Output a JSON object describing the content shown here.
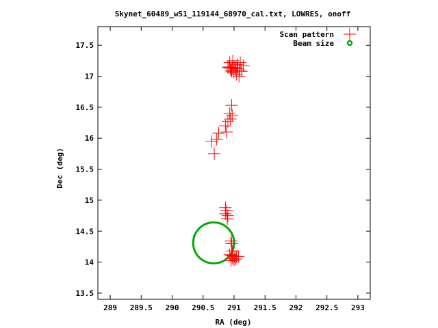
{
  "chart_data": {
    "type": "scatter",
    "title": "Skynet_60489_w51_119144_68970_cal.txt, LOWRES, onoff",
    "xlabel": "RA (deg)",
    "ylabel": "Dec (deg)",
    "xlim": [
      288.8,
      293.2
    ],
    "ylim": [
      13.4,
      17.8
    ],
    "x_ticks": [
      289,
      289.5,
      290,
      290.5,
      291,
      291.5,
      292,
      292.5,
      293
    ],
    "x_tick_labels": [
      "289",
      "289.5",
      "290",
      "290.5",
      "291",
      "291.5",
      "292",
      "292.5",
      "293"
    ],
    "y_ticks": [
      13.5,
      14,
      14.5,
      15,
      15.5,
      16,
      16.5,
      17,
      17.5
    ],
    "y_tick_labels": [
      "13.5",
      "14",
      "14.5",
      "15",
      "15.5",
      "16",
      "16.5",
      "17",
      "17.5"
    ],
    "grid": false,
    "legend_position": "top-right",
    "colors": {
      "scan": "#ff0000",
      "beam": "#00aa00"
    },
    "series": [
      {
        "name": "Scan pattern",
        "marker": "plus",
        "points": [
          [
            290.93,
            17.22
          ],
          [
            290.98,
            17.25
          ],
          [
            291.05,
            17.19
          ],
          [
            291.1,
            17.22
          ],
          [
            291.15,
            17.17
          ],
          [
            290.9,
            17.14
          ],
          [
            290.94,
            17.13
          ],
          [
            290.97,
            17.14
          ],
          [
            291.0,
            17.14
          ],
          [
            291.03,
            17.14
          ],
          [
            291.06,
            17.12
          ],
          [
            291.09,
            17.1
          ],
          [
            291.12,
            17.08
          ],
          [
            290.96,
            17.08
          ],
          [
            290.99,
            17.06
          ],
          [
            291.04,
            17.03
          ],
          [
            291.08,
            17.0
          ],
          [
            290.95,
            17.1
          ],
          [
            291.02,
            17.1
          ],
          [
            290.92,
            17.15
          ],
          [
            290.96,
            16.53
          ],
          [
            290.93,
            16.4
          ],
          [
            290.97,
            16.37
          ],
          [
            290.94,
            16.31
          ],
          [
            290.9,
            16.27
          ],
          [
            290.86,
            16.2
          ],
          [
            290.88,
            16.1
          ],
          [
            290.75,
            16.08
          ],
          [
            290.72,
            15.98
          ],
          [
            290.64,
            15.95
          ],
          [
            290.68,
            15.75
          ],
          [
            290.86,
            14.88
          ],
          [
            290.88,
            14.83
          ],
          [
            290.86,
            14.78
          ],
          [
            290.9,
            14.75
          ],
          [
            290.89,
            14.7
          ],
          [
            290.95,
            14.34
          ],
          [
            290.96,
            14.3
          ],
          [
            290.97,
            14.18
          ],
          [
            290.93,
            14.12
          ],
          [
            290.96,
            14.11
          ],
          [
            290.98,
            14.1
          ],
          [
            291.01,
            14.09
          ],
          [
            291.04,
            14.09
          ],
          [
            291.07,
            14.09
          ],
          [
            290.97,
            14.06
          ],
          [
            291.0,
            14.03
          ],
          [
            290.95,
            14.02
          ],
          [
            291.03,
            14.05
          ]
        ]
      },
      {
        "name": "Beam size",
        "marker": "circle",
        "center": [
          290.67,
          14.31
        ],
        "radius_x": 0.33,
        "radius_y": 0.33
      }
    ]
  }
}
